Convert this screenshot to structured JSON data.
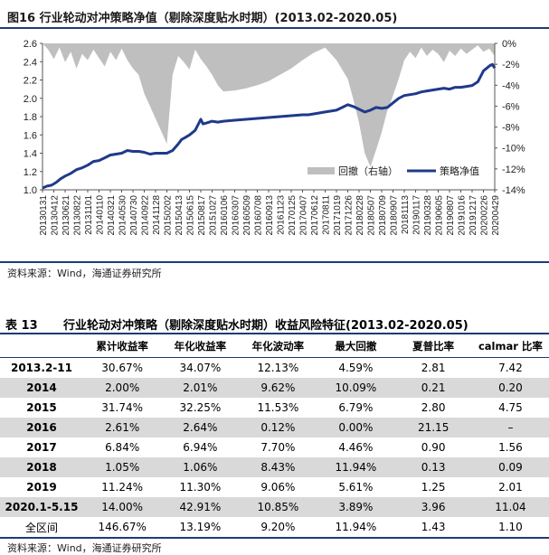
{
  "figure": {
    "title": "图16 行业轮动对冲策略净值（剔除深度贴水时期）(2013.02-2020.05)",
    "source": "资料来源：Wind，海通证券研究所"
  },
  "chart_data": {
    "type": "line+area",
    "title": "图16 行业轮动对冲策略净值（剔除深度贴水时期）(2013.02-2020.05)",
    "left_axis": {
      "min": 1.0,
      "max": 2.6,
      "step": 0.2,
      "ticks": [
        "1.0",
        "1.2",
        "1.4",
        "1.6",
        "1.8",
        "2.0",
        "2.2",
        "2.4",
        "2.6"
      ]
    },
    "right_axis": {
      "min": -14,
      "max": 0,
      "step": 2,
      "ticks": [
        "0%",
        "-2%",
        "-4%",
        "-6%",
        "-8%",
        "-10%",
        "-12%",
        "-14%"
      ]
    },
    "x_labels": [
      "20130131",
      "20130412",
      "20130621",
      "20130822",
      "20131101",
      "20140110",
      "20140321",
      "20140530",
      "20140730",
      "20140922",
      "20141128",
      "20150202",
      "20150413",
      "20150615",
      "20150817",
      "20151027",
      "20160106",
      "20160307",
      "20160509",
      "20160708",
      "20160913",
      "20161123",
      "20170125",
      "20170407",
      "20170612",
      "20170811",
      "20171019",
      "20171226",
      "20180228",
      "20180507",
      "20180709",
      "20180907",
      "20181113",
      "20190117",
      "20190328",
      "20190605",
      "20190807",
      "20191016",
      "20191217",
      "20200226",
      "20200429"
    ],
    "legend": [
      "回撤（右轴）",
      "策略净值"
    ],
    "series": [
      {
        "name": "策略净值",
        "axis": "left",
        "color": "#1f3a8a",
        "x": [
          0,
          0.4,
          0.8,
          1.2,
          1.6,
          2,
          2.5,
          3,
          3.5,
          4,
          4.5,
          5,
          5.5,
          6,
          6.5,
          7,
          7.5,
          8,
          8.5,
          9,
          9.5,
          10,
          10.5,
          11,
          11.5,
          12,
          12.3,
          12.6,
          13,
          13.5,
          14,
          14.2,
          14.5,
          15,
          15.5,
          16,
          17,
          18,
          19,
          20,
          21,
          22,
          23,
          23.5,
          24,
          25,
          26,
          26.5,
          27,
          27.5,
          28,
          28.5,
          29,
          29.5,
          30,
          30.5,
          31,
          31.5,
          32,
          32.5,
          33,
          33.5,
          34,
          34.5,
          35,
          35.5,
          36,
          36.5,
          37,
          37.5,
          38,
          38.5,
          38.8,
          39,
          39.3,
          39.6,
          39.8,
          40
        ],
        "values": [
          1.02,
          1.04,
          1.05,
          1.08,
          1.12,
          1.15,
          1.18,
          1.22,
          1.24,
          1.27,
          1.31,
          1.32,
          1.35,
          1.38,
          1.39,
          1.4,
          1.43,
          1.42,
          1.42,
          1.41,
          1.39,
          1.4,
          1.4,
          1.4,
          1.43,
          1.5,
          1.55,
          1.57,
          1.6,
          1.65,
          1.77,
          1.72,
          1.73,
          1.75,
          1.74,
          1.75,
          1.76,
          1.77,
          1.78,
          1.79,
          1.8,
          1.81,
          1.82,
          1.82,
          1.83,
          1.85,
          1.87,
          1.9,
          1.93,
          1.91,
          1.88,
          1.85,
          1.87,
          1.9,
          1.89,
          1.9,
          1.95,
          2.0,
          2.03,
          2.04,
          2.05,
          2.07,
          2.08,
          2.09,
          2.1,
          2.11,
          2.1,
          2.12,
          2.12,
          2.13,
          2.14,
          2.18,
          2.25,
          2.3,
          2.33,
          2.36,
          2.37,
          2.33
        ]
      },
      {
        "name": "回撤（右轴）",
        "axis": "right",
        "color": "#bfbfbf",
        "x": [
          0,
          0.5,
          1,
          1.5,
          2,
          2.5,
          3,
          3.5,
          4,
          4.5,
          5,
          5.5,
          6,
          6.5,
          7,
          7.5,
          8,
          8.5,
          9,
          9.5,
          10,
          10.5,
          11,
          11.5,
          12,
          12.5,
          13,
          13.5,
          14,
          14.5,
          15,
          15.5,
          16,
          17,
          18,
          19,
          20,
          21,
          22,
          23,
          24,
          25,
          26,
          27,
          27.5,
          28,
          28.5,
          29,
          29.5,
          30,
          30.5,
          31,
          31.5,
          32,
          32.5,
          33,
          33.5,
          34,
          34.5,
          35,
          35.5,
          36,
          36.5,
          37,
          37.5,
          38,
          38.5,
          39,
          39.5,
          40
        ],
        "values": [
          0,
          -0.6,
          -1.5,
          -0.4,
          -1.8,
          -0.8,
          -2.4,
          -1.0,
          -1.6,
          -0.6,
          -1.4,
          -2.2,
          -0.8,
          -1.6,
          -0.5,
          -1.6,
          -2.4,
          -3.0,
          -4.8,
          -6.0,
          -7.2,
          -8.4,
          -9.6,
          -3.0,
          -1.2,
          -1.8,
          -2.5,
          -0.6,
          -1.5,
          -2.2,
          -3.0,
          -4.0,
          -4.6,
          -4.5,
          -4.3,
          -4.0,
          -3.6,
          -3.0,
          -2.4,
          -1.6,
          -0.9,
          -0.4,
          -1.6,
          -3.4,
          -5.4,
          -7.6,
          -10.5,
          -11.8,
          -10.2,
          -8.5,
          -6.4,
          -5.0,
          -3.4,
          -1.6,
          -0.8,
          -1.4,
          -0.4,
          -1.2,
          -0.6,
          -1.0,
          -1.8,
          -0.7,
          -1.2,
          -0.5,
          -1.0,
          -0.6,
          -0.2,
          -0.8,
          -0.5,
          -1.2
        ]
      }
    ]
  },
  "table": {
    "label": "表 13",
    "title": "行业轮动对冲策略（剔除深度贴水时期）收益风险特征(2013.02-2020.05)",
    "headers": [
      "",
      "累计收益率",
      "年化收益率",
      "年化波动率",
      "最大回撤",
      "夏普比率",
      "calmar 比率"
    ],
    "rows": [
      {
        "label": "2013.2-11",
        "cells": [
          "30.67%",
          "34.07%",
          "12.13%",
          "4.59%",
          "2.81",
          "7.42"
        ]
      },
      {
        "label": "2014",
        "cells": [
          "2.00%",
          "2.01%",
          "9.62%",
          "10.09%",
          "0.21",
          "0.20"
        ]
      },
      {
        "label": "2015",
        "cells": [
          "31.74%",
          "32.25%",
          "11.53%",
          "6.79%",
          "2.80",
          "4.75"
        ]
      },
      {
        "label": "2016",
        "cells": [
          "2.61%",
          "2.64%",
          "0.12%",
          "0.00%",
          "21.15",
          "–"
        ]
      },
      {
        "label": "2017",
        "cells": [
          "6.84%",
          "6.94%",
          "7.70%",
          "4.46%",
          "0.90",
          "1.56"
        ]
      },
      {
        "label": "2018",
        "cells": [
          "1.05%",
          "1.06%",
          "8.43%",
          "11.94%",
          "0.13",
          "0.09"
        ]
      },
      {
        "label": "2019",
        "cells": [
          "11.24%",
          "11.30%",
          "9.06%",
          "5.61%",
          "1.25",
          "2.01"
        ]
      },
      {
        "label": "2020.1-5.15",
        "cells": [
          "14.00%",
          "42.91%",
          "10.85%",
          "3.89%",
          "3.96",
          "11.04"
        ]
      },
      {
        "label": "全区间",
        "cells": [
          "146.67%",
          "13.19%",
          "9.20%",
          "11.94%",
          "1.43",
          "1.10"
        ]
      }
    ],
    "source": "资料来源：Wind，海通证券研究所"
  }
}
